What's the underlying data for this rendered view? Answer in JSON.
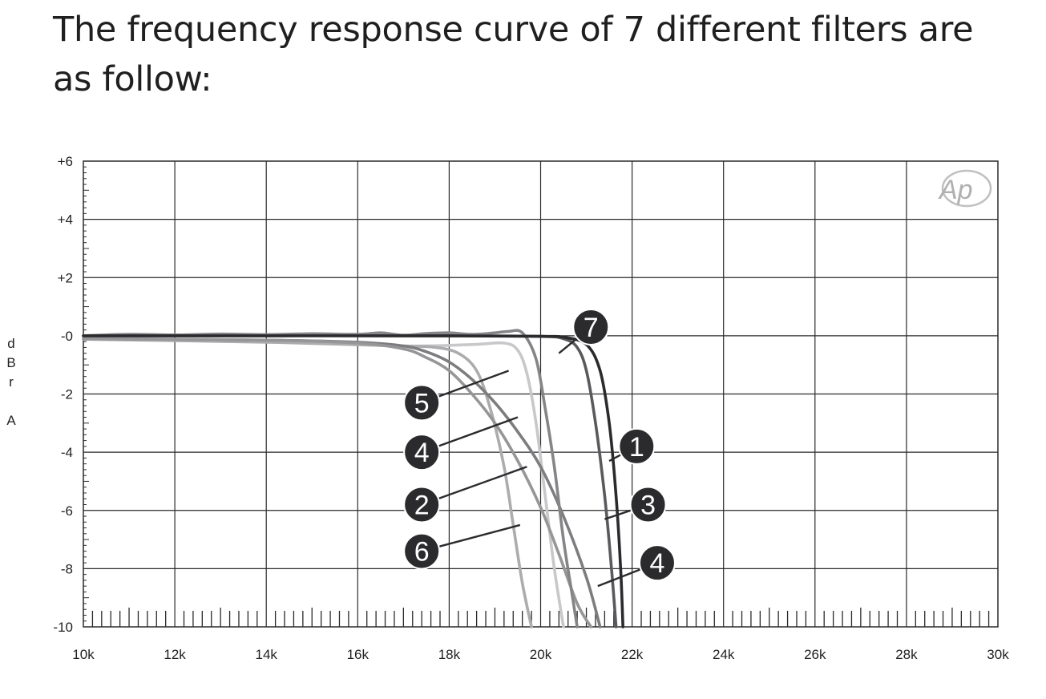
{
  "heading": {
    "line1": "The frequency response curve of 7 different filters are",
    "line2": "as follow:"
  },
  "logo": {
    "text": "Ap",
    "color": "#b0b0b0"
  },
  "chart_data": {
    "type": "line",
    "title": "",
    "xlabel": "",
    "ylabel": "dBr A",
    "ylabel_lines": [
      "d",
      "B",
      "r",
      "",
      "A"
    ],
    "xlim": [
      10000,
      30000
    ],
    "ylim": [
      -10,
      6
    ],
    "grid": true,
    "x_ticks": [
      10000,
      12000,
      14000,
      16000,
      18000,
      20000,
      22000,
      24000,
      26000,
      28000,
      30000
    ],
    "x_tick_labels": [
      "10k",
      "12k",
      "14k",
      "16k",
      "18k",
      "20k",
      "22k",
      "24k",
      "26k",
      "28k",
      "30k"
    ],
    "y_ticks": [
      6,
      4,
      2,
      0,
      -2,
      -4,
      -6,
      -8,
      -10
    ],
    "y_tick_labels": [
      "+6",
      "+4",
      "+2",
      "-0",
      "-2",
      "-4",
      "-6",
      "-8",
      "-10"
    ],
    "series": [
      {
        "name": "1",
        "color": "#2b2b2e",
        "x": [
          10000,
          14000,
          18000,
          20000,
          20500,
          21000,
          21300,
          21500,
          21650,
          21750,
          21800
        ],
        "y": [
          0,
          0,
          0,
          -0.02,
          -0.05,
          -0.3,
          -1.2,
          -3,
          -5.5,
          -8,
          -10
        ]
      },
      {
        "name": "2",
        "color": "#7d7d80",
        "x": [
          10000,
          14000,
          16000,
          17000,
          17500,
          18000,
          18500,
          19000,
          19500,
          20000,
          20500,
          21000,
          21300
        ],
        "y": [
          -0.1,
          -0.15,
          -0.22,
          -0.35,
          -0.55,
          -0.9,
          -1.5,
          -2.3,
          -3.3,
          -4.5,
          -6.2,
          -8.3,
          -10
        ]
      },
      {
        "name": "3",
        "color": "#5a5a5e",
        "x": [
          10000,
          14000,
          18000,
          20000,
          20500,
          20800,
          21000,
          21200,
          21400,
          21550,
          21650
        ],
        "y": [
          0,
          0,
          0,
          -0.02,
          -0.1,
          -0.4,
          -1.2,
          -3,
          -5.5,
          -8,
          -10
        ]
      },
      {
        "name": "4",
        "color": "#969698",
        "x": [
          10000,
          14000,
          16000,
          17000,
          17500,
          18000,
          18500,
          19000,
          19500,
          20000,
          20400,
          20800,
          21100
        ],
        "y": [
          -0.1,
          -0.15,
          -0.25,
          -0.45,
          -0.75,
          -1.2,
          -2,
          -3,
          -4.3,
          -5.9,
          -7.5,
          -9.2,
          -10
        ]
      },
      {
        "name": "5",
        "color": "#c8c8ca",
        "x": [
          10000,
          14000,
          17000,
          18500,
          19200,
          19500,
          19700,
          19900,
          20100,
          20300,
          20500
        ],
        "y": [
          -0.1,
          -0.2,
          -0.35,
          -0.3,
          -0.25,
          -0.5,
          -1.3,
          -3,
          -5.5,
          -8,
          -10
        ]
      },
      {
        "name": "6",
        "color": "#acacae",
        "x": [
          10000,
          14000,
          17000,
          17700,
          18200,
          18600,
          18900,
          19200,
          19400,
          19600,
          19800
        ],
        "y": [
          -0.12,
          -0.22,
          -0.35,
          -0.4,
          -0.6,
          -1.2,
          -2.5,
          -4.5,
          -6.5,
          -8.5,
          -10
        ]
      },
      {
        "name": "7",
        "color": "#858588",
        "x": [
          10000,
          11000,
          12000,
          13000,
          14000,
          15000,
          16000,
          16500,
          17000,
          17500,
          18000,
          18500,
          19000,
          19300,
          19600,
          19900,
          20100,
          20300,
          20500,
          20700,
          20800
        ],
        "y": [
          0,
          0.05,
          0.03,
          0.06,
          0.04,
          0.07,
          0.05,
          0.1,
          0.02,
          0.08,
          0.1,
          0.05,
          0.1,
          0.15,
          0.1,
          -0.8,
          -2.5,
          -4.5,
          -7,
          -9,
          -10
        ]
      }
    ],
    "callouts": [
      {
        "label": "7",
        "target": [
          20400,
          -0.6
        ],
        "badge": [
          21100,
          0.3
        ]
      },
      {
        "label": "5",
        "target": [
          19300,
          -1.2
        ],
        "badge": [
          17400,
          -2.3
        ]
      },
      {
        "label": "4",
        "target": [
          19500,
          -2.8
        ],
        "badge": [
          17400,
          -4.0
        ]
      },
      {
        "label": "2",
        "target": [
          19700,
          -4.5
        ],
        "badge": [
          17400,
          -5.8
        ]
      },
      {
        "label": "6",
        "target": [
          19550,
          -6.5
        ],
        "badge": [
          17400,
          -7.4
        ]
      },
      {
        "label": "1",
        "target": [
          21500,
          -4.3
        ],
        "badge": [
          22100,
          -3.8
        ]
      },
      {
        "label": "3",
        "target": [
          21400,
          -6.3
        ],
        "badge": [
          22350,
          -5.8
        ]
      },
      {
        "label": "4",
        "target": [
          21250,
          -8.6
        ],
        "badge": [
          22550,
          -7.8
        ]
      }
    ]
  }
}
